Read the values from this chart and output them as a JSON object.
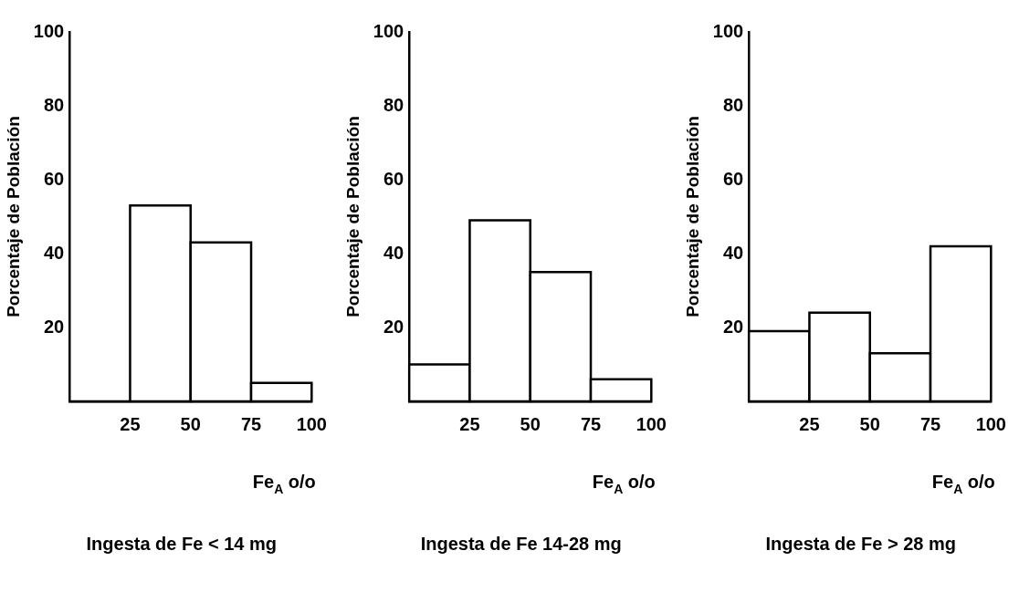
{
  "chart_data": [
    {
      "type": "histogram",
      "title": "Ingesta de Fe < 14 mg",
      "xlabel": "Fe$_{A}$ o/o",
      "ylabel": "Porcentaje de Población",
      "color": "#000000",
      "bins": [
        0,
        25,
        50,
        75,
        100
      ],
      "values": [
        0,
        53,
        43,
        5
      ],
      "xlim": [
        0,
        100
      ],
      "ylim": [
        0,
        100
      ],
      "xticks": [
        25,
        50,
        75,
        100
      ],
      "yticks": [
        20,
        40,
        60,
        80,
        100
      ]
    },
    {
      "type": "histogram",
      "title": "Ingesta de Fe 14-28 mg",
      "xlabel": "Fe$_{A}$ o/o",
      "ylabel": "Porcentaje de Población",
      "color": "#000000",
      "bins": [
        0,
        25,
        50,
        75,
        100
      ],
      "values": [
        10,
        49,
        35,
        6
      ],
      "xlim": [
        0,
        100
      ],
      "ylim": [
        0,
        100
      ],
      "xticks": [
        25,
        50,
        75,
        100
      ],
      "yticks": [
        20,
        40,
        60,
        80,
        100
      ]
    },
    {
      "type": "histogram",
      "title": "Ingesta de Fe > 28 mg",
      "xlabel": "Fe$_{A}$ o/o",
      "ylabel": "Porcentaje de Población",
      "color": "#000000",
      "bins": [
        0,
        25,
        50,
        75,
        100
      ],
      "values": [
        19,
        24,
        13,
        42
      ],
      "xlim": [
        0,
        100
      ],
      "ylim": [
        0,
        100
      ],
      "xticks": [
        25,
        50,
        75,
        100
      ],
      "yticks": [
        20,
        40,
        60,
        80,
        100
      ]
    }
  ]
}
